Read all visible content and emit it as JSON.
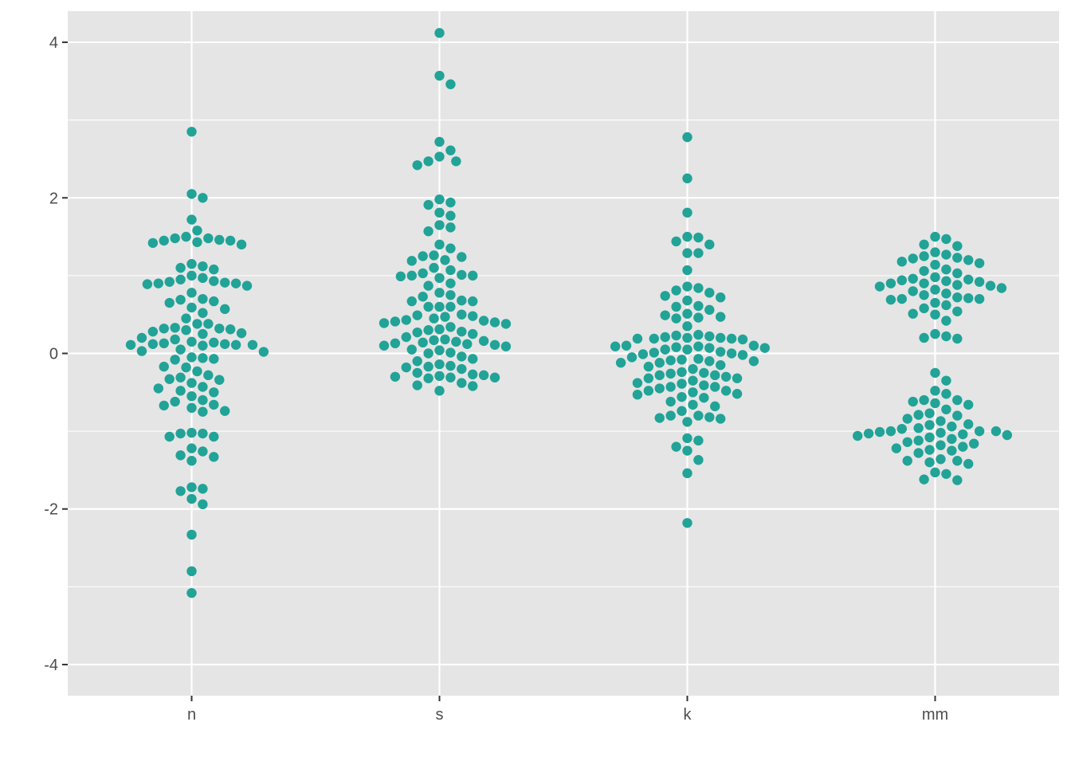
{
  "chart_data": {
    "type": "scatter",
    "subtype": "beeswarm",
    "title": "",
    "xlabel": "",
    "ylabel": "",
    "categories": [
      "n",
      "s",
      "k",
      "mm"
    ],
    "ylim": [
      -4.4,
      4.4
    ],
    "yticks": [
      -4,
      -2,
      0,
      2,
      4
    ],
    "ytick_labels": [
      "-4",
      "-2",
      "0",
      "2",
      "4"
    ],
    "grid": true,
    "legend": "none",
    "point_color": "#21a397",
    "panel_color": "#e5e5e5",
    "grid_color": "#ffffff",
    "series": [
      {
        "category": "n",
        "values": [
          2.85,
          2.05,
          2.0,
          1.72,
          1.58,
          1.5,
          1.48,
          1.48,
          1.46,
          1.45,
          1.45,
          1.43,
          1.42,
          1.4,
          1.15,
          1.12,
          1.1,
          1.08,
          1.0,
          0.97,
          0.95,
          0.93,
          0.92,
          0.91,
          0.9,
          0.9,
          0.89,
          0.87,
          0.78,
          0.7,
          0.69,
          0.67,
          0.65,
          0.59,
          0.57,
          0.52,
          0.45,
          0.38,
          0.38,
          0.33,
          0.32,
          0.32,
          0.31,
          0.3,
          0.28,
          0.26,
          0.25,
          0.2,
          0.18,
          0.15,
          0.14,
          0.13,
          0.12,
          0.12,
          0.11,
          0.11,
          0.11,
          0.1,
          0.05,
          0.03,
          0.02,
          -0.05,
          -0.06,
          -0.07,
          -0.08,
          -0.17,
          -0.18,
          -0.23,
          -0.28,
          -0.31,
          -0.33,
          -0.34,
          -0.38,
          -0.43,
          -0.45,
          -0.48,
          -0.5,
          -0.55,
          -0.6,
          -0.62,
          -0.66,
          -0.67,
          -0.7,
          -0.74,
          -0.75,
          -1.02,
          -1.03,
          -1.03,
          -1.07,
          -1.07,
          -1.22,
          -1.26,
          -1.31,
          -1.33,
          -1.38,
          -1.72,
          -1.74,
          -1.77,
          -1.87,
          -1.94,
          -2.33,
          -2.8,
          -3.08
        ]
      },
      {
        "category": "s",
        "values": [
          4.12,
          3.57,
          3.46,
          2.72,
          2.61,
          2.53,
          2.47,
          2.47,
          2.42,
          1.98,
          1.94,
          1.91,
          1.81,
          1.77,
          1.65,
          1.62,
          1.57,
          1.4,
          1.35,
          1.26,
          1.25,
          1.24,
          1.2,
          1.19,
          1.1,
          1.07,
          1.03,
          1.01,
          1.0,
          1.0,
          0.99,
          0.97,
          0.9,
          0.87,
          0.78,
          0.75,
          0.73,
          0.68,
          0.67,
          0.67,
          0.6,
          0.6,
          0.6,
          0.5,
          0.49,
          0.48,
          0.47,
          0.45,
          0.43,
          0.42,
          0.41,
          0.4,
          0.39,
          0.38,
          0.34,
          0.31,
          0.3,
          0.28,
          0.27,
          0.25,
          0.21,
          0.18,
          0.17,
          0.16,
          0.15,
          0.14,
          0.13,
          0.12,
          0.11,
          0.1,
          0.09,
          0.05,
          0.04,
          0.01,
          0.0,
          -0.04,
          -0.07,
          -0.1,
          -0.14,
          -0.16,
          -0.17,
          -0.18,
          -0.2,
          -0.25,
          -0.27,
          -0.28,
          -0.29,
          -0.3,
          -0.31,
          -0.31,
          -0.32,
          -0.38,
          -0.41,
          -0.42,
          -0.48
        ]
      },
      {
        "category": "k",
        "values": [
          2.78,
          2.25,
          1.81,
          1.5,
          1.49,
          1.44,
          1.4,
          1.29,
          1.29,
          1.07,
          0.86,
          0.84,
          0.81,
          0.78,
          0.74,
          0.72,
          0.68,
          0.61,
          0.6,
          0.56,
          0.51,
          0.49,
          0.47,
          0.46,
          0.45,
          0.35,
          0.24,
          0.23,
          0.22,
          0.21,
          0.2,
          0.2,
          0.19,
          0.19,
          0.19,
          0.18,
          0.1,
          0.1,
          0.09,
          0.09,
          0.08,
          0.07,
          0.07,
          0.05,
          0.05,
          0.02,
          0.01,
          0.0,
          -0.01,
          -0.02,
          -0.05,
          -0.07,
          -0.08,
          -0.09,
          -0.1,
          -0.1,
          -0.12,
          -0.12,
          -0.15,
          -0.17,
          -0.2,
          -0.24,
          -0.25,
          -0.26,
          -0.28,
          -0.28,
          -0.3,
          -0.32,
          -0.32,
          -0.35,
          -0.38,
          -0.39,
          -0.41,
          -0.43,
          -0.43,
          -0.45,
          -0.48,
          -0.48,
          -0.5,
          -0.52,
          -0.53,
          -0.56,
          -0.57,
          -0.62,
          -0.66,
          -0.68,
          -0.74,
          -0.8,
          -0.8,
          -0.82,
          -0.83,
          -0.84,
          -0.88,
          -1.09,
          -1.12,
          -1.2,
          -1.25,
          -1.37,
          -1.54,
          -2.18
        ]
      },
      {
        "category": "mm",
        "values": [
          1.5,
          1.47,
          1.4,
          1.38,
          1.3,
          1.27,
          1.25,
          1.23,
          1.22,
          1.2,
          1.18,
          1.16,
          1.14,
          1.08,
          1.06,
          1.03,
          0.98,
          0.96,
          0.95,
          0.94,
          0.93,
          0.92,
          0.9,
          0.9,
          0.88,
          0.87,
          0.86,
          0.84,
          0.82,
          0.8,
          0.77,
          0.75,
          0.72,
          0.71,
          0.7,
          0.7,
          0.69,
          0.65,
          0.62,
          0.58,
          0.54,
          0.51,
          0.5,
          0.42,
          0.25,
          0.22,
          0.2,
          0.19,
          -0.25,
          -0.35,
          -0.48,
          -0.52,
          -0.6,
          -0.6,
          -0.62,
          -0.64,
          -0.66,
          -0.72,
          -0.77,
          -0.79,
          -0.8,
          -0.84,
          -0.87,
          -0.91,
          -0.92,
          -0.94,
          -0.96,
          -0.97,
          -1.0,
          -1.0,
          -1.0,
          -1.01,
          -1.02,
          -1.03,
          -1.04,
          -1.05,
          -1.06,
          -1.08,
          -1.1,
          -1.12,
          -1.14,
          -1.16,
          -1.18,
          -1.2,
          -1.22,
          -1.24,
          -1.25,
          -1.28,
          -1.36,
          -1.38,
          -1.38,
          -1.4,
          -1.42,
          -1.53,
          -1.55,
          -1.62,
          -1.63
        ]
      }
    ]
  }
}
